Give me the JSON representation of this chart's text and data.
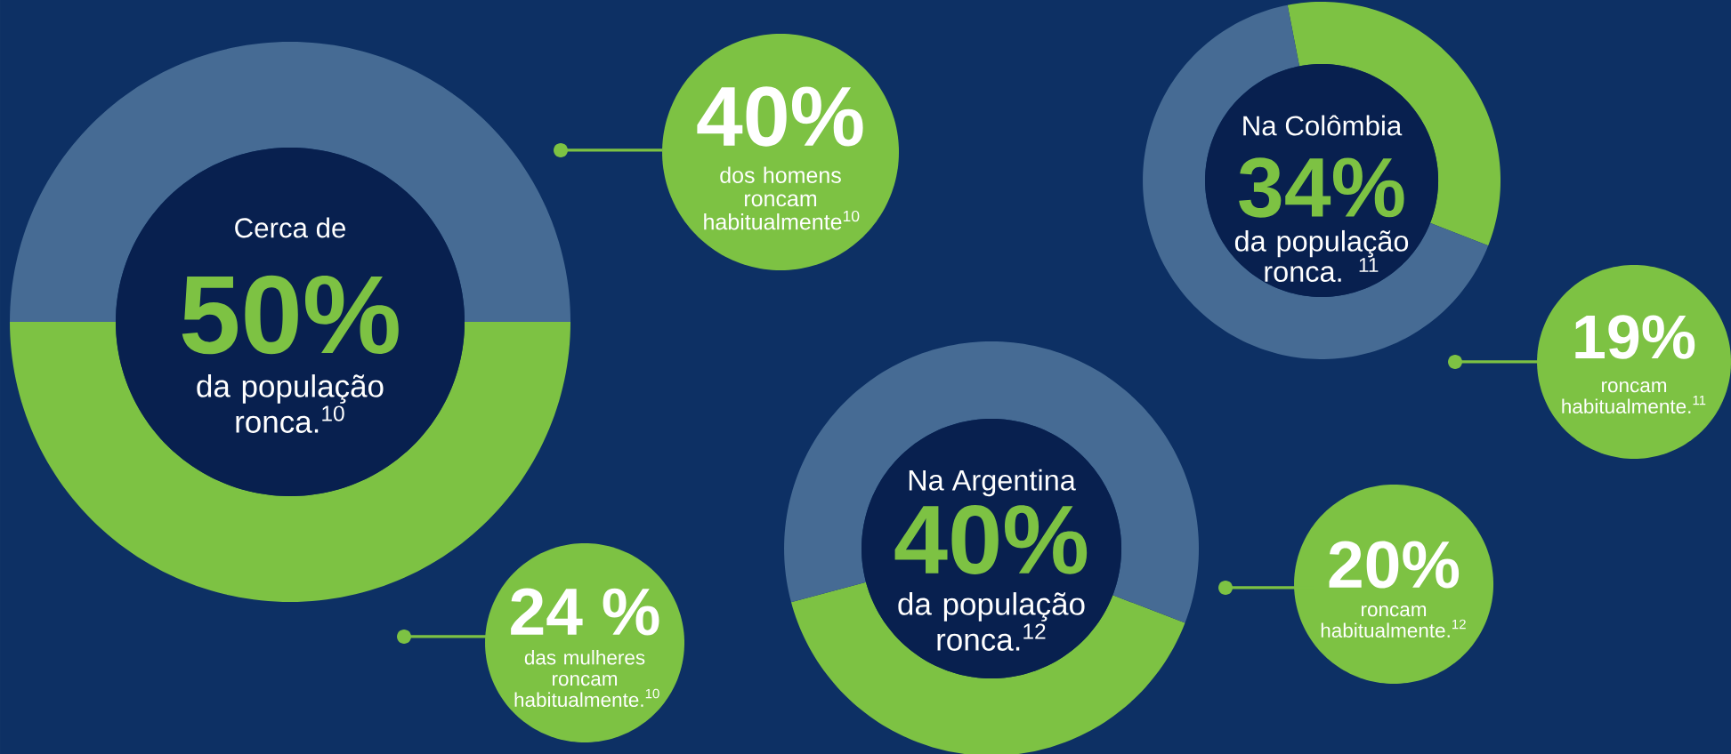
{
  "chart_data": [
    {
      "type": "donut",
      "title": "Cerca de",
      "categories": [
        null,
        null
      ],
      "values": [
        50,
        50
      ],
      "colors": [
        "#7dc243",
        "#466b94"
      ],
      "annotations": [
        "50%",
        "da população ronca.$^{10}$"
      ]
    },
    {
      "type": "other",
      "annotations": [
        "40%",
        "dos homens roncam habitualmente$^{10}$"
      ]
    },
    {
      "type": "other",
      "annotations": [
        "24 %",
        "das mulheres roncam habitualmente.$^{10}$"
      ]
    },
    {
      "type": "donut",
      "title": "Na Colômbia",
      "categories": [
        null,
        null
      ],
      "values": [
        34,
        66
      ],
      "colors": [
        "#7dc243",
        "#466b94"
      ],
      "annotations": [
        "34%",
        "da população ronca. $^{11}$"
      ]
    },
    {
      "type": "other",
      "annotations": [
        "19%",
        "roncam habitualmente.$^{11}$"
      ]
    },
    {
      "type": "donut",
      "title": "Na Argentina",
      "categories": [
        null,
        null
      ],
      "values": [
        40,
        60
      ],
      "colors": [
        "#7dc243",
        "#466b94"
      ],
      "annotations": [
        "40%",
        "da população ronca.$^{12}$"
      ]
    },
    {
      "type": "other",
      "annotations": [
        "20%",
        "roncam habitualmente.$^{12}$"
      ]
    }
  ]
}
